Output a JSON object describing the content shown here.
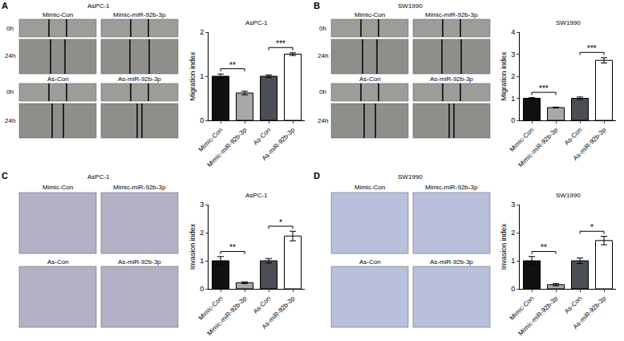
{
  "chart_data": [
    {
      "panel": "A",
      "type": "bar",
      "title": "AsPC-1",
      "y_label": "Migration index",
      "categories": [
        "Mimic-Con",
        "Mimic-miR-92b-3p",
        "As-Con",
        "As-miR-92b-3p"
      ],
      "values": [
        1.0,
        0.62,
        1.0,
        1.5
      ],
      "errors": [
        0.05,
        0.04,
        0.03,
        0.03
      ],
      "colors": [
        "#111111",
        "#a8a8a8",
        "#4a4f55",
        "#ffffff"
      ],
      "ylim": [
        0,
        2
      ],
      "yticks": [
        0,
        1,
        2
      ],
      "grid": false,
      "annotations": [
        {
          "between": [
            "Mimic-Con",
            "Mimic-miR-92b-3p"
          ],
          "text": "**"
        },
        {
          "between": [
            "As-Con",
            "As-miR-92b-3p"
          ],
          "text": "***"
        }
      ]
    },
    {
      "panel": "B",
      "type": "bar",
      "title": "SW1990",
      "y_label": "Migration index",
      "categories": [
        "Mimic-Con",
        "Mimic-miR-92b-3p",
        "As-Con",
        "As-miR-92b-3p"
      ],
      "values": [
        1.0,
        0.58,
        1.0,
        2.72
      ],
      "errors": [
        0.03,
        0.02,
        0.06,
        0.12
      ],
      "colors": [
        "#111111",
        "#a8a8a8",
        "#4a4f55",
        "#ffffff"
      ],
      "ylim": [
        0,
        4
      ],
      "yticks": [
        0,
        1,
        2,
        3,
        4
      ],
      "grid": false,
      "annotations": [
        {
          "between": [
            "Mimic-Con",
            "Mimic-miR-92b-3p"
          ],
          "text": "***"
        },
        {
          "between": [
            "As-Con",
            "As-miR-92b-3p"
          ],
          "text": "***"
        }
      ]
    },
    {
      "panel": "C",
      "type": "bar",
      "title": "AsPC-1",
      "y_label": "Invasion index",
      "categories": [
        "Mimic-Con",
        "Mimic-miR-92b-3p",
        "As-Con",
        "As-miR-92b-3p"
      ],
      "values": [
        1.0,
        0.22,
        1.0,
        1.88
      ],
      "errors": [
        0.15,
        0.03,
        0.08,
        0.17
      ],
      "colors": [
        "#111111",
        "#a8a8a8",
        "#4a4f55",
        "#ffffff"
      ],
      "ylim": [
        0,
        3
      ],
      "yticks": [
        0,
        1,
        2,
        3
      ],
      "grid": false,
      "annotations": [
        {
          "between": [
            "Mimic-Con",
            "Mimic-miR-92b-3p"
          ],
          "text": "**"
        },
        {
          "between": [
            "As-Con",
            "As-miR-92b-3p"
          ],
          "text": "*"
        }
      ]
    },
    {
      "panel": "D",
      "type": "bar",
      "title": "SW1990",
      "y_label": "Invasion index",
      "categories": [
        "Mimic-Con",
        "Mimic-miR-92b-3p",
        "As-Con",
        "As-miR-92b-3p"
      ],
      "values": [
        1.0,
        0.15,
        1.0,
        1.72
      ],
      "errors": [
        0.15,
        0.04,
        0.1,
        0.15
      ],
      "colors": [
        "#111111",
        "#a8a8a8",
        "#4a4f55",
        "#ffffff"
      ],
      "ylim": [
        0,
        3
      ],
      "yticks": [
        0,
        1,
        2,
        3
      ],
      "grid": false,
      "annotations": [
        {
          "between": [
            "Mimic-Con",
            "Mimic-miR-92b-3p"
          ],
          "text": "**"
        },
        {
          "between": [
            "As-Con",
            "As-miR-92b-3p"
          ],
          "text": "*"
        }
      ]
    }
  ],
  "images": [
    {
      "panel": "A",
      "title": "AsPC-1",
      "labels": [
        "Mimic-Con",
        "Mimic-miR-92b-3p",
        "As-Con",
        "As-miR-92b-3p"
      ],
      "times": [
        "0h",
        "24h"
      ]
    },
    {
      "panel": "B",
      "title": "SW1990",
      "labels": [
        "Mimic-Con",
        "Mimic-miR-92b-3p",
        "As-Con",
        "As-miR-92b-3p"
      ],
      "times": [
        "0h",
        "24h"
      ]
    },
    {
      "panel": "C",
      "title": "AsPC-1",
      "labels": [
        "Mimic-Con",
        "Mimic-miR-92b-3p",
        "As-Con",
        "As-miR-92b-3p"
      ]
    },
    {
      "panel": "D",
      "title": "SW1990",
      "labels": [
        "Mimic-Con",
        "Mimic-miR-92b-3p",
        "As-Con",
        "As-miR-92b-3p"
      ]
    }
  ]
}
